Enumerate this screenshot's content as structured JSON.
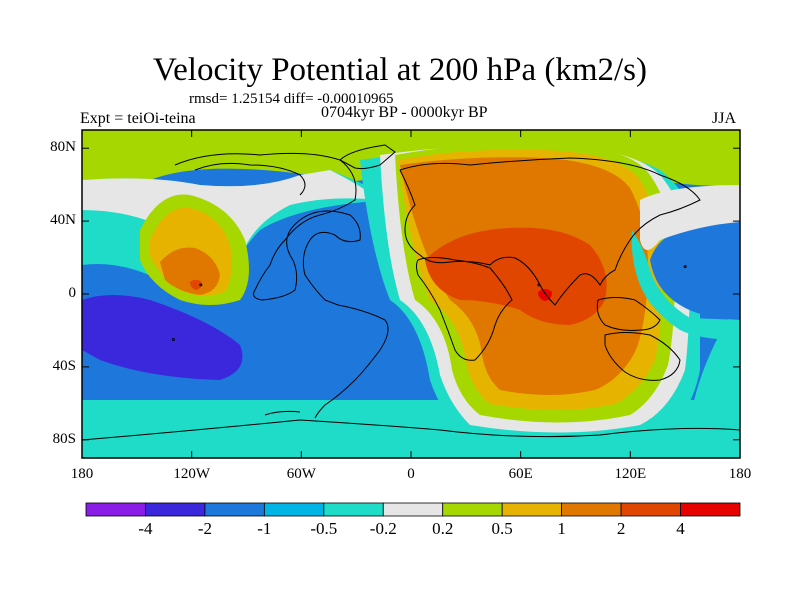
{
  "title": "Velocity Potential at 200 hPa (km2/s)",
  "stats_text": "rmsd= 1.25154  diff= -0.00010965",
  "experiment_label": "Expt = teiOi-teina",
  "period_label": "0704kyr BP - 0000kyr BP",
  "season_label": "JJA",
  "map": {
    "lon_range": [
      -180,
      180
    ],
    "lat_range": [
      -90,
      90
    ],
    "lat_ticks": [
      {
        "label": "80N",
        "value": 80
      },
      {
        "label": "40N",
        "value": 40
      },
      {
        "label": "0",
        "value": 0
      },
      {
        "label": "40S",
        "value": -40
      },
      {
        "label": "80S",
        "value": -80
      }
    ],
    "lon_ticks": [
      {
        "label": "180",
        "value": -180
      },
      {
        "label": "120W",
        "value": -120
      },
      {
        "label": "60W",
        "value": -60
      },
      {
        "label": "0",
        "value": 0
      },
      {
        "label": "60E",
        "value": 60
      },
      {
        "label": "120E",
        "value": 120
      },
      {
        "label": "180",
        "value": 180
      }
    ],
    "features": [
      {
        "name": "central-pacific-high",
        "lon": -115,
        "lat": 5,
        "peak": 1.5
      },
      {
        "name": "african-asian-high",
        "lon": 70,
        "lat": 5,
        "peak": 4.3
      },
      {
        "name": "south-pacific-low",
        "lon": -130,
        "lat": -25,
        "peak": -2.8
      },
      {
        "name": "west-pacific-low",
        "lon": 150,
        "lat": 15,
        "peak": -1.2
      }
    ]
  },
  "colorbar": {
    "colors": [
      "#8a1ee6",
      "#3c28dc",
      "#1e78dc",
      "#00b4e6",
      "#1edcc8",
      "#e6e6e6",
      "#a6d800",
      "#e6b400",
      "#e07800",
      "#e04600",
      "#e60000"
    ],
    "tick_labels": [
      "-4",
      "-2",
      "-1",
      "-0.5",
      "-0.2",
      "0.2",
      "0.5",
      "1",
      "2",
      "4"
    ]
  }
}
